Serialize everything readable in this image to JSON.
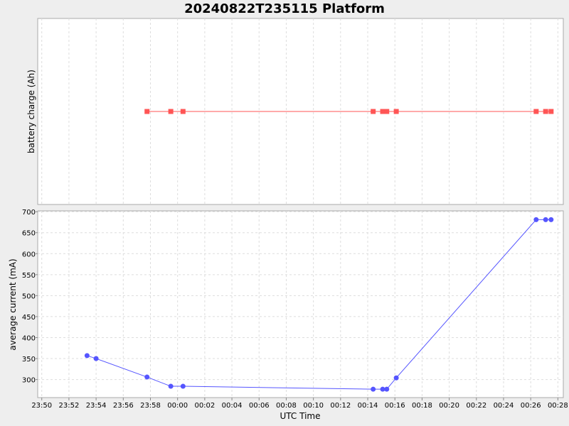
{
  "chart_data": {
    "type": "line",
    "title": "20240822T235115 Platform",
    "xlabel": "UTC Time",
    "x_ticks": [
      "23:50",
      "23:52",
      "23:54",
      "23:56",
      "23:58",
      "00:00",
      "00:02",
      "00:04",
      "00:06",
      "00:08",
      "00:10",
      "00:12",
      "00:14",
      "00:16",
      "00:18",
      "00:20",
      "00:22",
      "00:24",
      "00:26",
      "00:28"
    ],
    "x_range_minutes": [
      -0.3,
      38.4
    ],
    "grid": true,
    "panels": [
      {
        "ylabel": "battery charge (Ah)",
        "y_ticks": [],
        "ylim": [
          0,
          1
        ],
        "color": "#ff5555",
        "marker": "square",
        "series": [
          {
            "x": [
              "23:57:45",
              "23:59:30",
              "00:00:24",
              "00:14:24",
              "00:15:06",
              "00:15:24",
              "00:16:06",
              "00:26:24",
              "00:27:06",
              "00:27:30"
            ],
            "y": [
              0.5,
              0.5,
              0.5,
              0.5,
              0.5,
              0.5,
              0.5,
              0.5,
              0.5,
              0.5
            ]
          }
        ]
      },
      {
        "ylabel": "average current (mA)",
        "y_ticks": [
          300,
          350,
          400,
          450,
          500,
          550,
          600,
          650,
          700
        ],
        "ylim": [
          257,
          702
        ],
        "color": "#5555ff",
        "marker": "circle",
        "series": [
          {
            "x": [
              "23:53:20",
              "23:54:00",
              "23:57:45",
              "23:59:30",
              "00:00:24",
              "00:14:24",
              "00:15:06",
              "00:15:24",
              "00:16:06",
              "00:26:24",
              "00:27:06",
              "00:27:30"
            ],
            "y": [
              357,
              350,
              306,
              284,
              284,
              277,
              277,
              277,
              304,
              681,
              681,
              681
            ]
          }
        ]
      }
    ]
  }
}
